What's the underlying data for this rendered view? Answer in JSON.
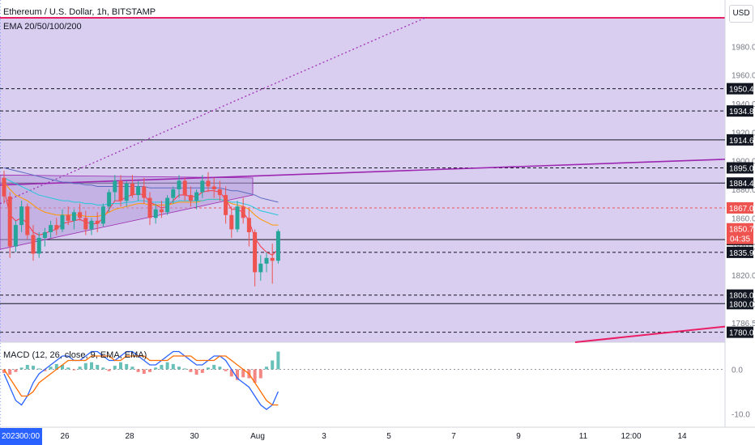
{
  "header": {
    "title": "Ethereum / U.S. Dollar, 1h, BITSTAMP",
    "ema_label": "EMA 20/50/100/200",
    "currency": "USD"
  },
  "macd": {
    "label": "MACD (12, 26, close, 9, EMA, EMA)"
  },
  "colors": {
    "zone_fill": "#d9cdf0",
    "up": "#26a69a",
    "down": "#ef5350",
    "trendline": "#9c27b0",
    "red_line": "#e91e63",
    "macd_line": "#2962ff",
    "signal_line": "#ff6d00"
  },
  "chart_data": [
    {
      "type": "candlestick",
      "title": "Ethereum / U.S. Dollar, 1h, BITSTAMP",
      "x_tick_labels": [
        "2023",
        "00:00",
        "26",
        "28",
        "30",
        "Aug",
        "3",
        "5",
        "7",
        "9",
        "11",
        "12:00",
        "14"
      ],
      "y_tick_labels": [
        1980.0,
        1960.0,
        1940.0,
        1920.0,
        1900.0,
        1880.0,
        1860.0,
        1840.0,
        1820.0,
        1800.0,
        1786.5
      ],
      "ylim": [
        1773,
        2000
      ],
      "current_price": 1850.7,
      "countdown": "04:35",
      "horizontal_levels": [
        {
          "value": 1950.4,
          "label": "1950.4",
          "style": "dashed"
        },
        {
          "value": 1934.8,
          "label": "1934.8",
          "style": "dashed"
        },
        {
          "value": 1914.6,
          "label": "1914.6",
          "style": "solid"
        },
        {
          "value": 1895.0,
          "label": "1895.0",
          "style": "dashed"
        },
        {
          "value": 1884.4,
          "label": "1884.4",
          "style": "solid"
        },
        {
          "value": 1867.0,
          "label": "1867.0",
          "style": "red-dashed"
        },
        {
          "value": 1844.8,
          "label": "1844.8",
          "style": "solid"
        },
        {
          "value": 1835.9,
          "label": "1835.9",
          "style": "dashed"
        },
        {
          "value": 1806.0,
          "label": "1806.0",
          "style": "dashed"
        },
        {
          "value": 1800.0,
          "label": "1800.0",
          "style": "solid"
        },
        {
          "value": 1780.0,
          "label": "1780.0",
          "style": "dashed"
        }
      ],
      "candles": [
        [
          1888,
          1893,
          1870,
          1875
        ],
        [
          1875,
          1878,
          1832,
          1840
        ],
        [
          1840,
          1858,
          1836,
          1855
        ],
        [
          1855,
          1872,
          1850,
          1868
        ],
        [
          1868,
          1870,
          1845,
          1848
        ],
        [
          1848,
          1855,
          1830,
          1835
        ],
        [
          1835,
          1850,
          1832,
          1846
        ],
        [
          1846,
          1853,
          1840,
          1850
        ],
        [
          1850,
          1858,
          1846,
          1855
        ],
        [
          1855,
          1860,
          1848,
          1852
        ],
        [
          1852,
          1866,
          1850,
          1862
        ],
        [
          1862,
          1868,
          1855,
          1858
        ],
        [
          1858,
          1866,
          1852,
          1864
        ],
        [
          1864,
          1870,
          1858,
          1860
        ],
        [
          1860,
          1865,
          1848,
          1852
        ],
        [
          1852,
          1860,
          1848,
          1858
        ],
        [
          1858,
          1864,
          1850,
          1856
        ],
        [
          1856,
          1870,
          1854,
          1868
        ],
        [
          1868,
          1880,
          1864,
          1878
        ],
        [
          1878,
          1890,
          1872,
          1886
        ],
        [
          1886,
          1890,
          1868,
          1872
        ],
        [
          1872,
          1886,
          1868,
          1884
        ],
        [
          1884,
          1890,
          1874,
          1876
        ],
        [
          1876,
          1886,
          1872,
          1882
        ],
        [
          1882,
          1888,
          1870,
          1874
        ],
        [
          1874,
          1878,
          1855,
          1860
        ],
        [
          1860,
          1870,
          1856,
          1866
        ],
        [
          1866,
          1872,
          1860,
          1864
        ],
        [
          1864,
          1876,
          1862,
          1874
        ],
        [
          1874,
          1882,
          1870,
          1880
        ],
        [
          1880,
          1890,
          1874,
          1886
        ],
        [
          1886,
          1888,
          1872,
          1876
        ],
        [
          1876,
          1882,
          1868,
          1872
        ],
        [
          1872,
          1880,
          1866,
          1878
        ],
        [
          1878,
          1890,
          1874,
          1886
        ],
        [
          1886,
          1892,
          1878,
          1882
        ],
        [
          1882,
          1888,
          1874,
          1880
        ],
        [
          1880,
          1886,
          1872,
          1876
        ],
        [
          1876,
          1882,
          1856,
          1862
        ],
        [
          1862,
          1868,
          1846,
          1852
        ],
        [
          1852,
          1872,
          1850,
          1868
        ],
        [
          1868,
          1874,
          1856,
          1860
        ],
        [
          1860,
          1866,
          1840,
          1850
        ],
        [
          1850,
          1852,
          1812,
          1822
        ],
        [
          1822,
          1834,
          1816,
          1828
        ],
        [
          1828,
          1836,
          1822,
          1832
        ],
        [
          1832,
          1842,
          1814,
          1830
        ],
        [
          1830,
          1852,
          1828,
          1850.7
        ]
      ],
      "ema_lines": [
        {
          "name": "EMA 20",
          "color": "#f23645",
          "values": [
            1880,
            1862,
            1858,
            1860,
            1856,
            1850,
            1848,
            1849,
            1851,
            1852,
            1856,
            1857,
            1858,
            1859,
            1857,
            1856,
            1856,
            1860,
            1866,
            1872,
            1872,
            1875,
            1876,
            1877,
            1876,
            1871,
            1869,
            1867,
            1868,
            1872,
            1876,
            1876,
            1875,
            1875,
            1878,
            1879,
            1879,
            1878,
            1873,
            1866,
            1866,
            1864,
            1858,
            1846,
            1840,
            1836,
            1834,
            1838
          ]
        },
        {
          "name": "EMA 50",
          "color": "#ff9800",
          "values": [
            1885,
            1880,
            1876,
            1874,
            1872,
            1869,
            1866,
            1864,
            1863,
            1862,
            1862,
            1862,
            1862,
            1862,
            1861,
            1861,
            1861,
            1862,
            1864,
            1866,
            1867,
            1868,
            1869,
            1870,
            1870,
            1869,
            1869,
            1869,
            1869,
            1870,
            1871,
            1871,
            1871,
            1871,
            1872,
            1873,
            1873,
            1873,
            1872,
            1870,
            1869,
            1868,
            1866,
            1862,
            1859,
            1857,
            1855,
            1855
          ]
        },
        {
          "name": "EMA 100",
          "color": "#26c6da",
          "values": [
            1888,
            1886,
            1884,
            1882,
            1880,
            1878,
            1876,
            1875,
            1874,
            1873,
            1872,
            1872,
            1871,
            1871,
            1870,
            1870,
            1869,
            1869,
            1870,
            1870,
            1870,
            1871,
            1871,
            1872,
            1872,
            1871,
            1871,
            1871,
            1871,
            1871,
            1872,
            1872,
            1872,
            1872,
            1872,
            1873,
            1873,
            1873,
            1872,
            1871,
            1871,
            1870,
            1869,
            1867,
            1865,
            1864,
            1863,
            1862
          ]
        },
        {
          "name": "EMA 200",
          "color": "#5c6bc0",
          "values": [
            1895,
            1894,
            1893,
            1892,
            1891,
            1890,
            1889,
            1888,
            1887,
            1886,
            1885,
            1885,
            1884,
            1884,
            1883,
            1883,
            1882,
            1882,
            1882,
            1882,
            1882,
            1882,
            1882,
            1882,
            1882,
            1881,
            1881,
            1881,
            1881,
            1881,
            1881,
            1881,
            1881,
            1881,
            1881,
            1881,
            1881,
            1881,
            1880,
            1879,
            1879,
            1878,
            1877,
            1876,
            1874,
            1873,
            1872,
            1871
          ]
        }
      ]
    },
    {
      "type": "bar",
      "title": "MACD (12, 26, close, 9, EMA, EMA)",
      "y_tick_labels": [
        0.0,
        -10.0
      ],
      "ylim": [
        -11,
        5
      ],
      "histogram": [
        -0.8,
        -1.2,
        -0.6,
        0.4,
        1.0,
        0.8,
        0.2,
        -0.4,
        0.6,
        1.2,
        1.0,
        0.4,
        -0.2,
        0.6,
        1.4,
        1.6,
        1.0,
        0.4,
        -0.4,
        0.8,
        1.6,
        1.2,
        0.6,
        -0.6,
        -1.0,
        -0.6,
        0.4,
        1.0,
        1.6,
        1.2,
        0.6,
        0.2,
        -0.6,
        -1.2,
        -0.8,
        0.4,
        1.0,
        0.6,
        -0.4,
        -1.6,
        -2.4,
        -1.8,
        -2.0,
        -3.0,
        -2.0,
        0.6,
        2.0,
        4.0
      ],
      "macd_line": [
        -1,
        -4,
        -7,
        -8,
        -6,
        -3,
        -1,
        0,
        1,
        2,
        3,
        3,
        2,
        2,
        3,
        4,
        4,
        3,
        2,
        2,
        3,
        4,
        4,
        3,
        2,
        1,
        1,
        2,
        3,
        4,
        4,
        3,
        2,
        1,
        1,
        2,
        3,
        3,
        2,
        0,
        -2,
        -3,
        -4,
        -6,
        -8,
        -9,
        -8,
        -5
      ],
      "signal_line": [
        0,
        -2,
        -4,
        -6,
        -6,
        -5,
        -3,
        -2,
        -1,
        0,
        1,
        2,
        2,
        2,
        2,
        3,
        3,
        3,
        3,
        2,
        2,
        3,
        3,
        3,
        3,
        2,
        2,
        2,
        2,
        3,
        3,
        3,
        3,
        2,
        2,
        2,
        2,
        3,
        3,
        2,
        1,
        0,
        -1,
        -3,
        -5,
        -7,
        -8,
        -8
      ]
    }
  ]
}
